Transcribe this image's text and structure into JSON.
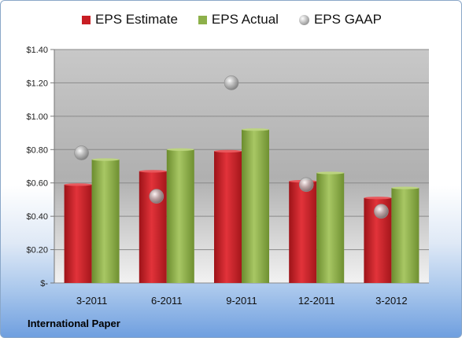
{
  "chart_data": {
    "type": "bar",
    "categories": [
      "3-2011",
      "6-2011",
      "9-2011",
      "12-2011",
      "3-2012"
    ],
    "series": [
      {
        "name": "EPS Estimate",
        "kind": "bar",
        "color": "#c81e24",
        "values": [
          0.59,
          0.67,
          0.79,
          0.61,
          0.51
        ]
      },
      {
        "name": "EPS Actual",
        "kind": "bar",
        "color": "#8db04a",
        "values": [
          0.74,
          0.8,
          0.92,
          0.66,
          0.57
        ]
      },
      {
        "name": "EPS GAAP",
        "kind": "bubble",
        "color": "#a6a6a6",
        "values": [
          0.78,
          0.52,
          1.2,
          0.59,
          0.43
        ]
      }
    ],
    "yticks": [
      "$-",
      "$0.20",
      "$0.40",
      "$0.60",
      "$0.80",
      "$1.00",
      "$1.20",
      "$1.40"
    ],
    "ylim": [
      0,
      1.4
    ],
    "grid": true,
    "legend": "top"
  },
  "footer": {
    "label": "International Paper"
  }
}
